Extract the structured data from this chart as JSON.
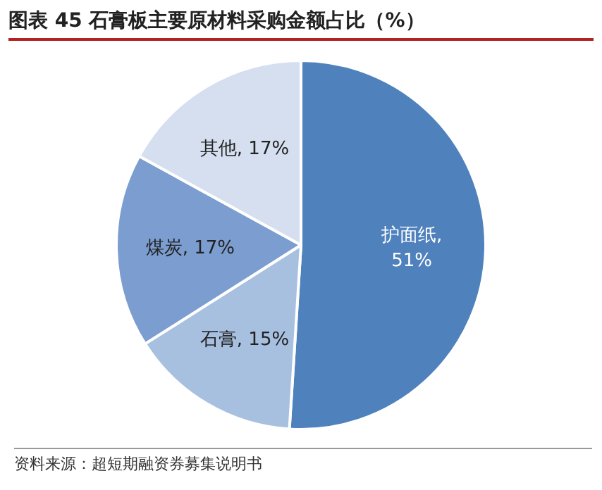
{
  "chart_data": {
    "type": "pie",
    "title": "图表 45 石膏板主要原材料采购金额占比（%）",
    "categories": [
      "护面纸",
      "石膏",
      "煤炭",
      "其他"
    ],
    "values": [
      51,
      15,
      17,
      17
    ],
    "colors": [
      "#4f81bd",
      "#a8c0e0",
      "#7b9dd0",
      "#d5dff0"
    ],
    "value_labels": [
      ", 51%",
      ", 15%",
      ", 17%",
      ", 17%"
    ],
    "legend": false,
    "annotations": [
      "资料来源：超短期融资券募集说明书"
    ]
  }
}
